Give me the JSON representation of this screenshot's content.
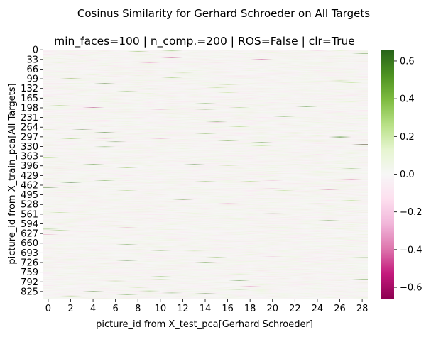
{
  "figure": {
    "suptitle": "Cosinus Similarity for Gerhard Schroeder on All Targets"
  },
  "chart_data": {
    "type": "heatmap",
    "title": "min_faces=100 | n_comp.=200 | ROS=False | clr=True",
    "xlabel": "picture_id from X_test_pca[Gerhard Schroeder]",
    "ylabel": "picture_id from X_train_pca[All Targets]",
    "x_ticks": [
      0,
      2,
      4,
      6,
      8,
      10,
      12,
      14,
      16,
      18,
      20,
      22,
      24,
      26,
      28
    ],
    "y_ticks": [
      0,
      33,
      66,
      99,
      132,
      165,
      198,
      231,
      264,
      297,
      330,
      363,
      396,
      429,
      462,
      495,
      528,
      561,
      594,
      627,
      660,
      693,
      726,
      759,
      792,
      825
    ],
    "n_cols": 29,
    "n_rows": 850,
    "colormap": "PiYG",
    "colorbar": {
      "vmin": -0.66,
      "vmax": 0.66,
      "ticks": [
        -0.6,
        -0.4,
        -0.2,
        0.0,
        0.2,
        0.4,
        0.6
      ],
      "tick_labels": [
        "−0.6",
        "−0.4",
        "−0.2",
        "0.0",
        "0.2",
        "0.4",
        "0.6"
      ]
    },
    "value_note": "cell values are mostly near 0 (range about -0.66 to 0.66)"
  }
}
